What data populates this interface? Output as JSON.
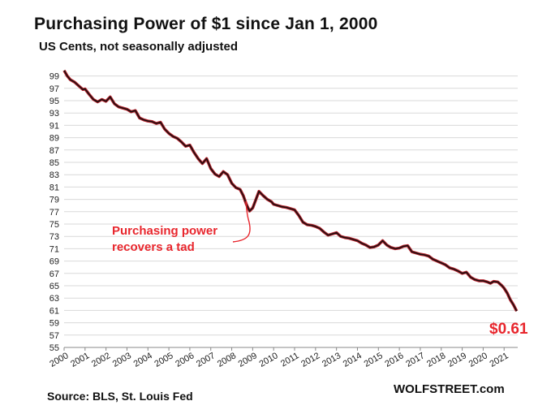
{
  "chart_data": {
    "type": "line",
    "title": "Purchasing  Power of $1 since Jan 1, 2000",
    "subtitle": "US Cents, not seasonally adjusted",
    "source": "Source: BLS, St. Louis Fed",
    "brand": "WOLFSTREET.com",
    "ylim": [
      55,
      100
    ],
    "yticks": [
      99,
      97,
      95,
      93,
      91,
      89,
      87,
      85,
      83,
      81,
      79,
      77,
      75,
      73,
      71,
      69,
      67,
      65,
      63,
      61,
      59,
      57,
      55
    ],
    "xlim": [
      2000,
      2021.65
    ],
    "xticks": [
      "2000",
      "2001",
      "2002",
      "2003",
      "2004",
      "2005",
      "2006",
      "2007",
      "2008",
      "2009",
      "2010",
      "2011",
      "2012",
      "2013",
      "2014",
      "2015",
      "2016",
      "2017",
      "2018",
      "2019",
      "2020",
      "2021"
    ],
    "grid": true,
    "series": [
      {
        "color": "#1a0f10",
        "accent_color": "#b5202a",
        "x": [
          2000.0,
          2000.15,
          2000.3,
          2000.5,
          2000.7,
          2000.9,
          2001.0,
          2001.2,
          2001.4,
          2001.6,
          2001.8,
          2002.0,
          2002.2,
          2002.4,
          2002.6,
          2002.8,
          2003.0,
          2003.2,
          2003.4,
          2003.6,
          2003.8,
          2004.0,
          2004.2,
          2004.4,
          2004.6,
          2004.8,
          2005.0,
          2005.2,
          2005.4,
          2005.6,
          2005.8,
          2006.0,
          2006.2,
          2006.4,
          2006.6,
          2006.8,
          2007.0,
          2007.2,
          2007.4,
          2007.6,
          2007.8,
          2008.0,
          2008.2,
          2008.4,
          2008.55,
          2008.7,
          2008.85,
          2009.0,
          2009.1,
          2009.3,
          2009.5,
          2009.7,
          2009.9,
          2010.0,
          2010.2,
          2010.4,
          2010.6,
          2010.8,
          2011.0,
          2011.2,
          2011.4,
          2011.6,
          2011.8,
          2012.0,
          2012.2,
          2012.4,
          2012.6,
          2012.8,
          2013.0,
          2013.2,
          2013.4,
          2013.6,
          2013.8,
          2014.0,
          2014.2,
          2014.4,
          2014.6,
          2014.8,
          2015.0,
          2015.2,
          2015.4,
          2015.6,
          2015.8,
          2016.0,
          2016.2,
          2016.4,
          2016.6,
          2016.8,
          2017.0,
          2017.2,
          2017.4,
          2017.6,
          2017.8,
          2018.0,
          2018.2,
          2018.4,
          2018.6,
          2018.8,
          2019.0,
          2019.2,
          2019.4,
          2019.6,
          2019.8,
          2020.0,
          2020.2,
          2020.35,
          2020.5,
          2020.7,
          2020.9,
          2021.0,
          2021.15,
          2021.3,
          2021.45,
          2021.6
        ],
        "values": [
          99.9,
          99.0,
          98.4,
          98.0,
          97.4,
          96.8,
          96.9,
          96.0,
          95.2,
          94.8,
          95.2,
          94.9,
          95.6,
          94.5,
          94.0,
          93.8,
          93.6,
          93.2,
          93.4,
          92.2,
          91.9,
          91.7,
          91.6,
          91.3,
          91.5,
          90.4,
          89.7,
          89.2,
          88.9,
          88.3,
          87.6,
          87.8,
          86.6,
          85.6,
          84.8,
          85.6,
          84.0,
          83.1,
          82.7,
          83.5,
          83.0,
          81.6,
          80.9,
          80.6,
          79.6,
          78.2,
          77.1,
          77.6,
          78.5,
          80.3,
          79.6,
          79.0,
          78.6,
          78.2,
          78.0,
          77.8,
          77.7,
          77.5,
          77.3,
          76.4,
          75.3,
          74.9,
          74.8,
          74.6,
          74.3,
          73.7,
          73.2,
          73.4,
          73.6,
          73.0,
          72.8,
          72.7,
          72.5,
          72.3,
          71.9,
          71.6,
          71.2,
          71.3,
          71.6,
          72.3,
          71.6,
          71.2,
          71.0,
          71.1,
          71.4,
          71.5,
          70.5,
          70.3,
          70.1,
          70.0,
          69.8,
          69.3,
          69.0,
          68.7,
          68.4,
          67.9,
          67.7,
          67.4,
          67.0,
          67.2,
          66.4,
          66.0,
          65.8,
          65.8,
          65.6,
          65.4,
          65.7,
          65.6,
          65.0,
          64.6,
          63.8,
          62.7,
          61.9,
          60.9
        ]
      }
    ],
    "annotations": {
      "recovery_line1": "Purchasing power",
      "recovery_line2": "recovers a tad",
      "final_value": "$0.61"
    }
  }
}
